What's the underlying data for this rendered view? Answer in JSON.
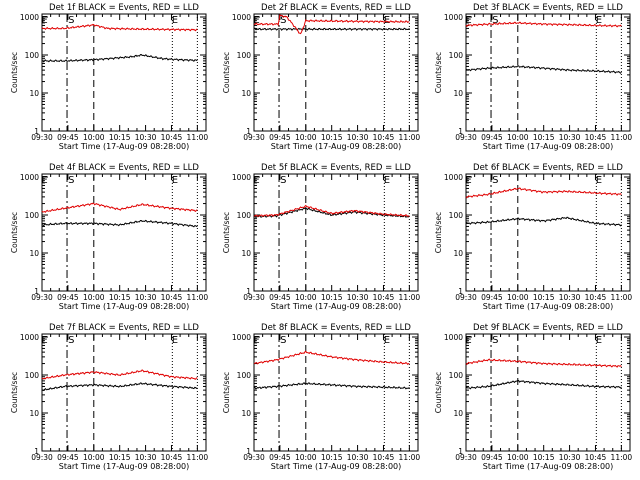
{
  "figure": {
    "xlabel": "Start Time (17-Aug-09 08:28:00)",
    "ylabel": "Counts/sec",
    "black_color": "#000000",
    "red_color": "#e00000",
    "x_ticks": [
      "09:30",
      "09:45",
      "10:00",
      "10:15",
      "10:30",
      "10:45",
      "11:00"
    ],
    "y_ticks": [
      "1",
      "10",
      "100",
      "1000"
    ],
    "marker_labels": [
      "E",
      "S",
      "E"
    ]
  },
  "chart_data": [
    {
      "type": "line",
      "title": "Det 1f BLACK = Events, RED = LLD",
      "xlabel": "Start Time (17-Aug-09 08:28:00)",
      "ylabel": "Counts/sec",
      "x_unit": "minutes after 09:30",
      "xlim": [
        0,
        95
      ],
      "ylim": [
        1,
        1200
      ],
      "ylog": true,
      "grid": false,
      "markers": {
        "E_start": 0,
        "S": 14.5,
        "gap_end": 30,
        "E_end": 75.5,
        "end": 90
      },
      "series": [
        {
          "points": [
            [
              0,
              70
            ],
            [
              13,
              70
            ],
            [
              30,
              75
            ],
            [
              38,
              80
            ],
            [
              52,
              90
            ],
            [
              58,
              100
            ],
            [
              70,
              80
            ],
            [
              80,
              75
            ],
            [
              90,
              72
            ]
          ]
        },
        {
          "points": [
            [
              0,
              500
            ],
            [
              13,
              500
            ],
            [
              30,
              620
            ],
            [
              38,
              500
            ],
            [
              58,
              480
            ],
            [
              75,
              470
            ],
            [
              90,
              460
            ]
          ]
        }
      ]
    },
    {
      "type": "line",
      "title": "Det 2f BLACK = Events, RED = LLD",
      "xlabel": "Start Time (17-Aug-09 08:28:00)",
      "ylabel": "Counts/sec",
      "x_unit": "minutes after 09:30",
      "xlim": [
        0,
        95
      ],
      "ylim": [
        1,
        1200
      ],
      "ylog": true,
      "grid": false,
      "markers": {
        "E_start": 0,
        "S": 14.5,
        "gap_end": 30,
        "E_end": 75.5,
        "end": 90
      },
      "series": [
        {
          "points": [
            [
              0,
              480
            ],
            [
              14,
              480
            ],
            [
              30,
              480
            ],
            [
              60,
              480
            ],
            [
              75,
              480
            ],
            [
              90,
              480
            ]
          ]
        },
        {
          "points": [
            [
              0,
              650
            ],
            [
              14,
              650
            ],
            [
              15,
              1100
            ],
            [
              19,
              1000
            ],
            [
              23,
              600
            ],
            [
              27,
              350
            ],
            [
              30,
              800
            ],
            [
              50,
              780
            ],
            [
              70,
              760
            ],
            [
              90,
              750
            ]
          ]
        }
      ]
    },
    {
      "type": "line",
      "title": "Det 3f BLACK = Events, RED = LLD",
      "xlabel": "Start Time (17-Aug-09 08:28:00)",
      "ylabel": "Counts/sec",
      "x_unit": "minutes after 09:30",
      "xlim": [
        0,
        95
      ],
      "ylim": [
        1,
        1200
      ],
      "ylog": true,
      "grid": false,
      "markers": {
        "E_start": 0,
        "S": 14.5,
        "gap_end": 30,
        "E_end": 75.5,
        "end": 90
      },
      "series": [
        {
          "points": [
            [
              0,
              40
            ],
            [
              13,
              45
            ],
            [
              30,
              50
            ],
            [
              45,
              45
            ],
            [
              60,
              40
            ],
            [
              75,
              38
            ],
            [
              90,
              35
            ]
          ]
        },
        {
          "points": [
            [
              0,
              600
            ],
            [
              13,
              650
            ],
            [
              30,
              700
            ],
            [
              45,
              650
            ],
            [
              60,
              630
            ],
            [
              75,
              600
            ],
            [
              90,
              580
            ]
          ]
        }
      ]
    },
    {
      "type": "line",
      "title": "Det 4f BLACK = Events, RED = LLD",
      "xlabel": "Start Time (17-Aug-09 08:28:00)",
      "ylabel": "Counts/sec",
      "x_unit": "minutes after 09:30",
      "xlim": [
        0,
        95
      ],
      "ylim": [
        1,
        1200
      ],
      "ylog": true,
      "grid": false,
      "markers": {
        "E_start": 0,
        "S": 14.5,
        "gap_end": 30,
        "E_end": 75.5,
        "end": 90
      },
      "series": [
        {
          "points": [
            [
              0,
              55
            ],
            [
              13,
              60
            ],
            [
              30,
              60
            ],
            [
              45,
              55
            ],
            [
              58,
              70
            ],
            [
              75,
              60
            ],
            [
              90,
              50
            ]
          ]
        },
        {
          "points": [
            [
              0,
              120
            ],
            [
              13,
              150
            ],
            [
              30,
              200
            ],
            [
              45,
              140
            ],
            [
              58,
              190
            ],
            [
              75,
              150
            ],
            [
              90,
              130
            ]
          ]
        }
      ]
    },
    {
      "type": "line",
      "title": "Det 5f BLACK = Events, RED = LLD",
      "xlabel": "Start Time (17-Aug-09 08:28:00)",
      "ylabel": "Counts/sec",
      "x_unit": "minutes after 09:30",
      "xlim": [
        0,
        95
      ],
      "ylim": [
        1,
        1200
      ],
      "ylog": true,
      "grid": false,
      "markers": {
        "E_start": 0,
        "S": 14.5,
        "gap_end": 30,
        "E_end": 75.5,
        "end": 90
      },
      "series": [
        {
          "points": [
            [
              0,
              90
            ],
            [
              13,
              95
            ],
            [
              30,
              150
            ],
            [
              45,
              100
            ],
            [
              58,
              120
            ],
            [
              75,
              100
            ],
            [
              90,
              90
            ]
          ]
        },
        {
          "points": [
            [
              0,
              95
            ],
            [
              13,
              100
            ],
            [
              30,
              170
            ],
            [
              45,
              110
            ],
            [
              58,
              130
            ],
            [
              75,
              105
            ],
            [
              90,
              95
            ]
          ]
        }
      ]
    },
    {
      "type": "line",
      "title": "Det 6f BLACK = Events, RED = LLD",
      "xlabel": "Start Time (17-Aug-09 08:28:00)",
      "ylabel": "Counts/sec",
      "x_unit": "minutes after 09:30",
      "xlim": [
        0,
        95
      ],
      "ylim": [
        1,
        1200
      ],
      "ylog": true,
      "grid": false,
      "markers": {
        "E_start": 0,
        "S": 14.5,
        "gap_end": 30,
        "E_end": 75.5,
        "end": 90
      },
      "series": [
        {
          "points": [
            [
              0,
              60
            ],
            [
              13,
              65
            ],
            [
              30,
              80
            ],
            [
              45,
              70
            ],
            [
              58,
              85
            ],
            [
              75,
              60
            ],
            [
              90,
              55
            ]
          ]
        },
        {
          "points": [
            [
              0,
              300
            ],
            [
              13,
              350
            ],
            [
              30,
              500
            ],
            [
              45,
              400
            ],
            [
              58,
              420
            ],
            [
              75,
              380
            ],
            [
              90,
              350
            ]
          ]
        }
      ]
    },
    {
      "type": "line",
      "title": "Det 7f BLACK = Events, RED = LLD",
      "xlabel": "Start Time (17-Aug-09 08:28:00)",
      "ylabel": "Counts/sec",
      "x_unit": "minutes after 09:30",
      "xlim": [
        0,
        95
      ],
      "ylim": [
        1,
        1200
      ],
      "ylog": true,
      "grid": false,
      "markers": {
        "E_start": 0,
        "S": 14.5,
        "gap_end": 30,
        "E_end": 75.5,
        "end": 90
      },
      "series": [
        {
          "points": [
            [
              0,
              40
            ],
            [
              13,
              50
            ],
            [
              30,
              55
            ],
            [
              45,
              50
            ],
            [
              58,
              60
            ],
            [
              75,
              50
            ],
            [
              90,
              45
            ]
          ]
        },
        {
          "points": [
            [
              0,
              80
            ],
            [
              13,
              100
            ],
            [
              30,
              120
            ],
            [
              45,
              100
            ],
            [
              58,
              130
            ],
            [
              75,
              90
            ],
            [
              90,
              80
            ]
          ]
        }
      ]
    },
    {
      "type": "line",
      "title": "Det 8f BLACK = Events, RED = LLD",
      "xlabel": "Start Time (17-Aug-09 08:28:00)",
      "ylabel": "Counts/sec",
      "x_unit": "minutes after 09:30",
      "xlim": [
        0,
        95
      ],
      "ylim": [
        1,
        1200
      ],
      "ylog": true,
      "grid": false,
      "markers": {
        "E_start": 0,
        "S": 14.5,
        "gap_end": 30,
        "E_end": 75.5,
        "end": 90
      },
      "series": [
        {
          "points": [
            [
              0,
              45
            ],
            [
              13,
              50
            ],
            [
              30,
              60
            ],
            [
              45,
              55
            ],
            [
              60,
              50
            ],
            [
              75,
              48
            ],
            [
              90,
              45
            ]
          ]
        },
        {
          "points": [
            [
              0,
              200
            ],
            [
              13,
              250
            ],
            [
              30,
              400
            ],
            [
              45,
              300
            ],
            [
              60,
              250
            ],
            [
              75,
              220
            ],
            [
              90,
              200
            ]
          ]
        }
      ]
    },
    {
      "type": "line",
      "title": "Det 9f BLACK = Events, RED = LLD",
      "xlabel": "Start Time (17-Aug-09 08:28:00)",
      "ylabel": "Counts/sec",
      "x_unit": "minutes after 09:30",
      "xlim": [
        0,
        95
      ],
      "ylim": [
        1,
        1200
      ],
      "ylog": true,
      "grid": false,
      "markers": {
        "E_start": 0,
        "S": 14.5,
        "gap_end": 30,
        "E_end": 75.5,
        "end": 90
      },
      "series": [
        {
          "points": [
            [
              0,
              45
            ],
            [
              13,
              50
            ],
            [
              30,
              70
            ],
            [
              45,
              60
            ],
            [
              60,
              55
            ],
            [
              75,
              50
            ],
            [
              90,
              48
            ]
          ]
        },
        {
          "points": [
            [
              0,
              200
            ],
            [
              13,
              250
            ],
            [
              30,
              230
            ],
            [
              45,
              200
            ],
            [
              60,
              190
            ],
            [
              75,
              180
            ],
            [
              90,
              170
            ]
          ]
        }
      ]
    }
  ]
}
